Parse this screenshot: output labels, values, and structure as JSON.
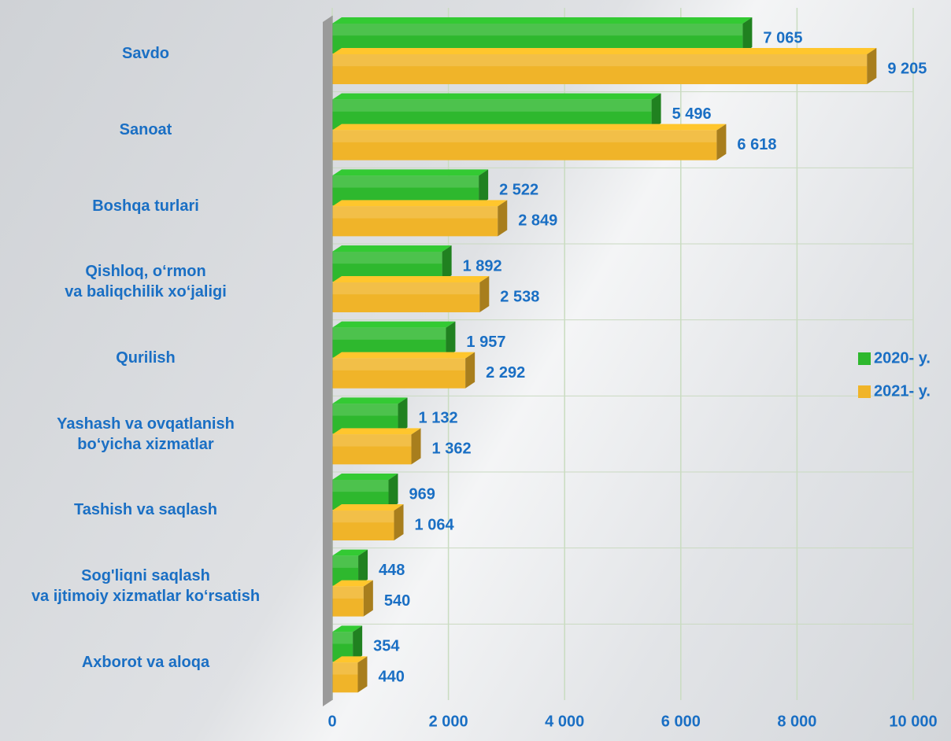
{
  "chart_data": {
    "type": "bar",
    "orientation": "horizontal",
    "categories": [
      "Savdo",
      "Sanoat",
      "Boshqa turlari",
      "Qishloq, o‘rmon\nva baliqchilik xo‘jaligi",
      "Qurilish",
      "Yashash va ovqatlanish\nbo‘yicha xizmatlar",
      "Tashish va saqlash",
      "Sog'liqni saqlash\nva ijtimoiy xizmatlar ko‘rsatish",
      "Axborot va aloqa"
    ],
    "series": [
      {
        "name": "2020- y.",
        "color": "#2eb82e",
        "values": [
          7065,
          5496,
          2522,
          1892,
          1957,
          1132,
          969,
          448,
          354
        ],
        "value_labels": [
          "7 065",
          "5 496",
          "2 522",
          "1 892",
          "1 957",
          "1 132",
          "969",
          "448",
          "354"
        ]
      },
      {
        "name": "2021- y.",
        "color": "#f0b429",
        "values": [
          9205,
          6618,
          2849,
          2538,
          2292,
          1362,
          1064,
          540,
          440
        ],
        "value_labels": [
          "9 205",
          "6 618",
          "2 849",
          "2 538",
          "2 292",
          "1 362",
          "1 064",
          "540",
          "440"
        ]
      }
    ],
    "xlim": [
      0,
      10000
    ],
    "xticks": [
      0,
      {
        "value": 2000,
        "label": "2 000"
      },
      {
        "value": 4000,
        "label": "4 000"
      },
      {
        "value": 6000,
        "label": "6 000"
      },
      {
        "value": 8000,
        "label": "8 000"
      },
      {
        "value": 10000,
        "label": "10 000"
      }
    ],
    "grid": true,
    "legend": "right"
  }
}
